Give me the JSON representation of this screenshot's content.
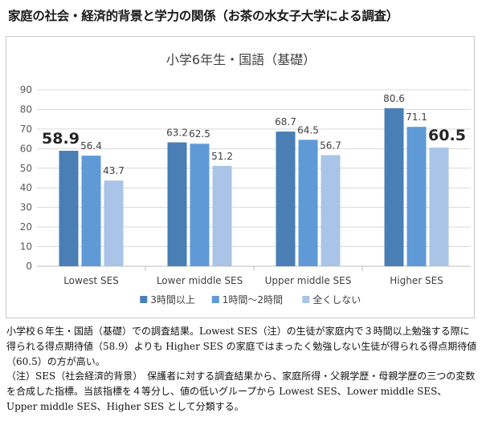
{
  "page": {
    "title": "家庭の社会・経済的背景と学力の関係（お茶の水女子大学による調査）"
  },
  "chart_data": {
    "type": "bar",
    "title": "小学6年生・国語（基礎）",
    "categories": [
      "Lowest SES",
      "Lower middle SES",
      "Upper middle SES",
      "Higher SES"
    ],
    "series": [
      {
        "name": "3時間以上",
        "values": [
          58.9,
          63.2,
          68.7,
          80.6
        ],
        "color": "#4a7fb5"
      },
      {
        "name": "1時間〜2時間",
        "values": [
          56.4,
          62.5,
          64.5,
          71.1
        ],
        "color": "#5f9ad6"
      },
      {
        "name": "全くしない",
        "values": [
          43.7,
          51.2,
          56.7,
          60.5
        ],
        "color": "#a9c4e6"
      }
    ],
    "highlighted_labels": [
      "58.9",
      "60.5"
    ],
    "ylim": [
      0,
      90
    ],
    "yticks": [
      0,
      10,
      20,
      30,
      40,
      50,
      60,
      70,
      80,
      90
    ],
    "grid": true,
    "legend": "bottom"
  },
  "caption": {
    "paragraph1": "小学校６年生・国語（基礎）での調査結果。Lowest SES（注）の生徒が家庭内で３時間以上勉強する際に得られる得点期待値（58.9）よりも Higher SES の家庭ではまったく勉強しない生徒が得られる得点期待値（60.5）の方が高い。",
    "paragraph2": "（注）SES（社会経済的背景）　保護者に対する調査結果から、家庭所得・父親学歴・母親学歴の三つの変数を合成した指標。当該指標を４等分し、値の低いグループから Lowest SES、Lower middle SES、Upper middle SES、Higher SES として分類する。"
  }
}
